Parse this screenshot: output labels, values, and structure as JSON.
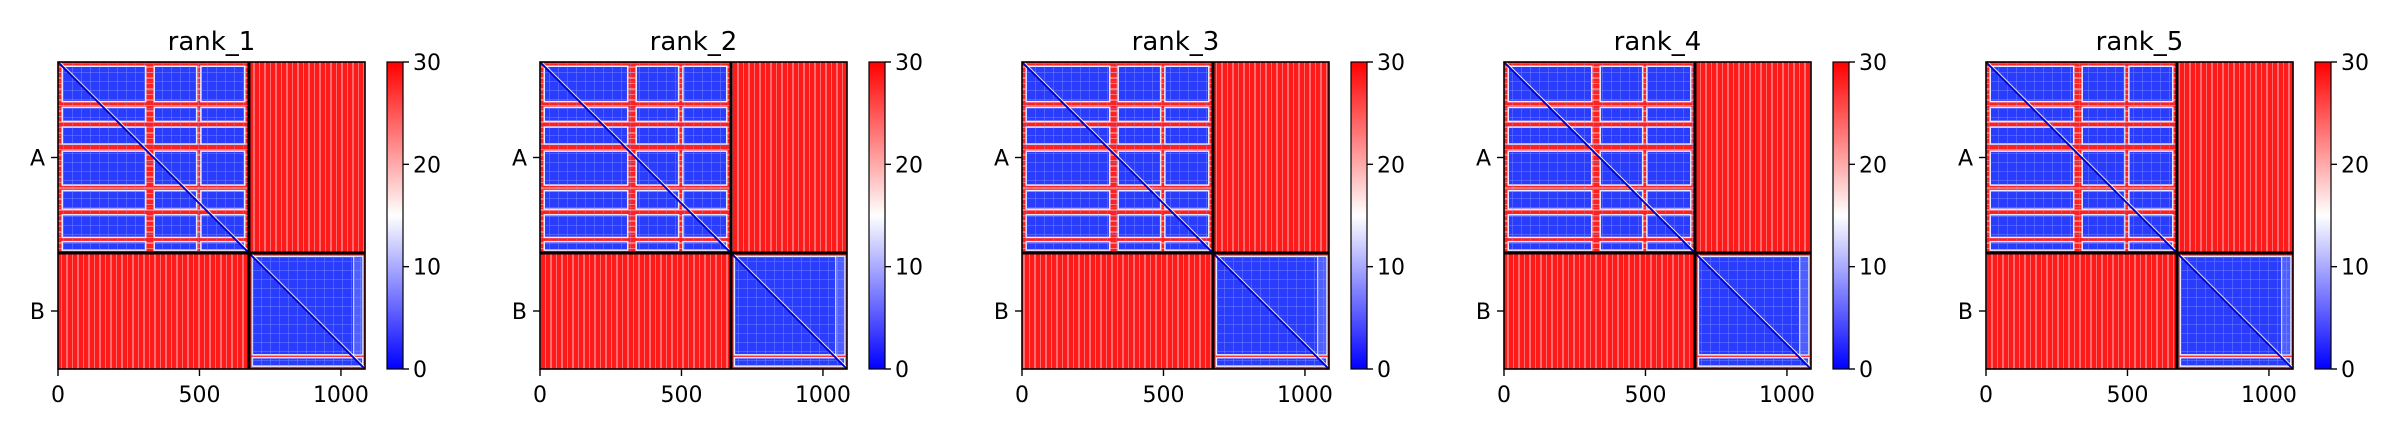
{
  "figure": {
    "type": "heatmap",
    "colormap": {
      "low": "#0000ff",
      "mid": "#ffffff",
      "high": "#ff0000"
    }
  },
  "chart_data": [
    {
      "type": "heatmap",
      "title": "rank_1",
      "xlim": [
        0,
        1085
      ],
      "ylim": [
        1085,
        0
      ],
      "xticks": [
        0,
        500,
        1000
      ],
      "ytick_labels": [
        "A",
        "B"
      ],
      "chains": [
        {
          "name": "A",
          "start": 0,
          "end": 675
        },
        {
          "name": "B",
          "start": 675,
          "end": 1085
        }
      ],
      "colorbar": {
        "min": 0,
        "max": 30,
        "ticks": [
          0,
          10,
          20,
          30
        ]
      }
    },
    {
      "type": "heatmap",
      "title": "rank_2",
      "xlim": [
        0,
        1085
      ],
      "ylim": [
        1085,
        0
      ],
      "xticks": [
        0,
        500,
        1000
      ],
      "ytick_labels": [
        "A",
        "B"
      ],
      "chains": [
        {
          "name": "A",
          "start": 0,
          "end": 675
        },
        {
          "name": "B",
          "start": 675,
          "end": 1085
        }
      ],
      "colorbar": {
        "min": 0,
        "max": 30,
        "ticks": [
          0,
          10,
          20,
          30
        ]
      }
    },
    {
      "type": "heatmap",
      "title": "rank_3",
      "xlim": [
        0,
        1085
      ],
      "ylim": [
        1085,
        0
      ],
      "xticks": [
        0,
        500,
        1000
      ],
      "ytick_labels": [
        "A",
        "B"
      ],
      "chains": [
        {
          "name": "A",
          "start": 0,
          "end": 675
        },
        {
          "name": "B",
          "start": 675,
          "end": 1085
        }
      ],
      "colorbar": {
        "min": 0,
        "max": 30,
        "ticks": [
          0,
          10,
          20,
          30
        ]
      }
    },
    {
      "type": "heatmap",
      "title": "rank_4",
      "xlim": [
        0,
        1085
      ],
      "ylim": [
        1085,
        0
      ],
      "xticks": [
        0,
        500,
        1000
      ],
      "ytick_labels": [
        "A",
        "B"
      ],
      "chains": [
        {
          "name": "A",
          "start": 0,
          "end": 675
        },
        {
          "name": "B",
          "start": 675,
          "end": 1085
        }
      ],
      "colorbar": {
        "min": 0,
        "max": 30,
        "ticks": [
          0,
          10,
          20,
          30
        ]
      }
    },
    {
      "type": "heatmap",
      "title": "rank_5",
      "xlim": [
        0,
        1085
      ],
      "ylim": [
        1085,
        0
      ],
      "xticks": [
        0,
        500,
        1000
      ],
      "ytick_labels": [
        "A",
        "B"
      ],
      "chains": [
        {
          "name": "A",
          "start": 0,
          "end": 675
        },
        {
          "name": "B",
          "start": 675,
          "end": 1085
        }
      ],
      "colorbar": {
        "min": 0,
        "max": 30,
        "ticks": [
          0,
          10,
          20,
          30
        ]
      }
    }
  ]
}
